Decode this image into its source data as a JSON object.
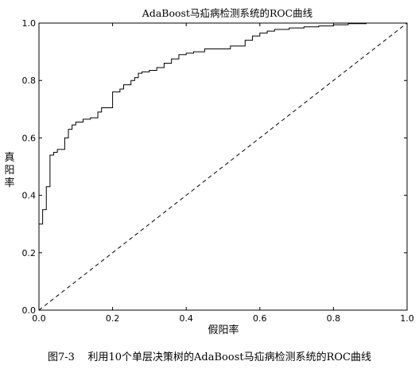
{
  "caption": {
    "number": "图7-3",
    "text": "利用10个单层决策树的AdaBoost马疝病检测系统的ROC曲线"
  },
  "chart_data": {
    "type": "line",
    "title": "AdaBoost马疝病检测系统的ROC曲线",
    "xlabel": "假阳率",
    "ylabel": [
      "真",
      "阳",
      "率"
    ],
    "xlim": [
      0,
      1
    ],
    "ylim": [
      0,
      1
    ],
    "x_ticks": [
      "0.0",
      "0.2",
      "0.4",
      "0.6",
      "0.8",
      "1.0"
    ],
    "y_ticks": [
      "0.0",
      "0.2",
      "0.4",
      "0.6",
      "0.8",
      "1.0"
    ],
    "grid": false,
    "series": [
      {
        "style": "solid-step",
        "color": "#000000",
        "x": [
          0,
          0,
          0.01,
          0.01,
          0.02,
          0.02,
          0.03,
          0.03,
          0.04,
          0.04,
          0.05,
          0.05,
          0.07,
          0.07,
          0.08,
          0.08,
          0.09,
          0.09,
          0.1,
          0.1,
          0.12,
          0.12,
          0.14,
          0.14,
          0.16,
          0.16,
          0.17,
          0.17,
          0.2,
          0.2,
          0.22,
          0.22,
          0.23,
          0.23,
          0.25,
          0.25,
          0.26,
          0.26,
          0.27,
          0.27,
          0.28,
          0.28,
          0.3,
          0.3,
          0.32,
          0.32,
          0.34,
          0.34,
          0.36,
          0.36,
          0.38,
          0.38,
          0.4,
          0.4,
          0.42,
          0.42,
          0.45,
          0.45,
          0.52,
          0.52,
          0.56,
          0.56,
          0.58,
          0.58,
          0.6,
          0.6,
          0.62,
          0.62,
          0.64,
          0.64,
          0.68,
          0.68,
          0.72,
          0.72,
          0.76,
          0.76,
          0.8,
          0.8,
          0.84,
          0.84,
          0.89
        ],
        "y": [
          0,
          0.3,
          0.3,
          0.35,
          0.35,
          0.43,
          0.43,
          0.54,
          0.54,
          0.55,
          0.55,
          0.56,
          0.56,
          0.6,
          0.6,
          0.63,
          0.63,
          0.645,
          0.645,
          0.655,
          0.655,
          0.665,
          0.665,
          0.67,
          0.67,
          0.69,
          0.69,
          0.705,
          0.705,
          0.76,
          0.76,
          0.77,
          0.77,
          0.785,
          0.785,
          0.8,
          0.8,
          0.81,
          0.81,
          0.825,
          0.825,
          0.83,
          0.83,
          0.835,
          0.835,
          0.845,
          0.845,
          0.86,
          0.86,
          0.875,
          0.875,
          0.89,
          0.89,
          0.895,
          0.895,
          0.9,
          0.9,
          0.91,
          0.91,
          0.92,
          0.92,
          0.94,
          0.94,
          0.955,
          0.955,
          0.965,
          0.965,
          0.972,
          0.972,
          0.978,
          0.978,
          0.983,
          0.983,
          0.987,
          0.987,
          0.99,
          0.99,
          0.994,
          0.994,
          0.998,
          0.998
        ]
      },
      {
        "style": "dashed",
        "color": "#000000",
        "x": [
          0,
          1
        ],
        "y": [
          0,
          1
        ]
      }
    ]
  }
}
